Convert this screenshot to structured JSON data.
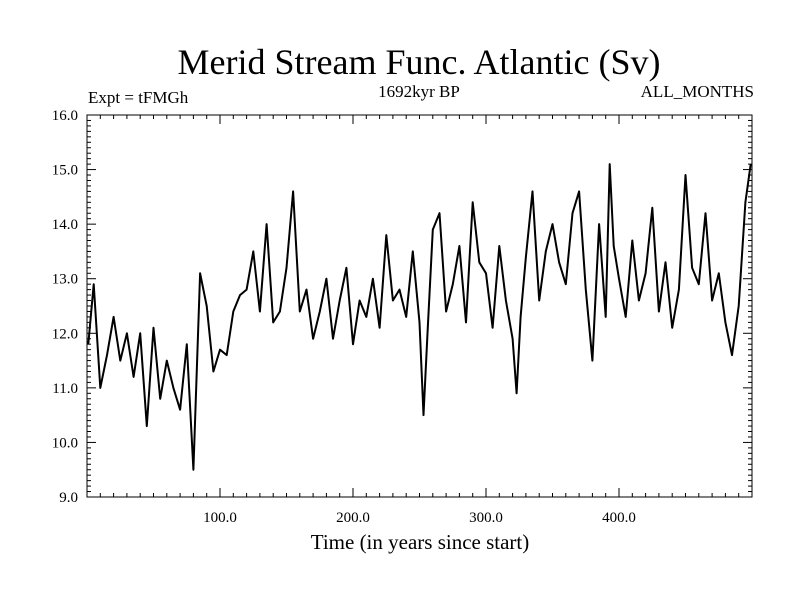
{
  "chart_data": {
    "type": "line",
    "title": "Merid Stream Func. Atlantic (Sv)",
    "subtitle_left": "Expt = tFMGh",
    "subtitle_center": "1692kyr BP",
    "subtitle_right": "ALL_MONTHS",
    "xlabel": "Time (in years since start)",
    "ylabel": "",
    "xlim": [
      0,
      500
    ],
    "ylim": [
      9.0,
      16.0
    ],
    "x_ticks": [
      100,
      200,
      300,
      400
    ],
    "x_tick_labels": [
      "100.0",
      "200.0",
      "300.0",
      "400.0"
    ],
    "y_ticks": [
      9,
      10,
      11,
      12,
      13,
      14,
      15,
      16
    ],
    "y_tick_labels": [
      "9.0",
      "10.0",
      "11.0",
      "12.0",
      "13.0",
      "14.0",
      "15.0",
      "16.0"
    ],
    "grid": false,
    "series": [
      {
        "name": "tFMGh",
        "x": [
          1,
          5,
          10,
          15,
          20,
          25,
          30,
          35,
          40,
          45,
          50,
          55,
          60,
          65,
          70,
          75,
          80,
          85,
          90,
          95,
          100,
          105,
          110,
          115,
          120,
          125,
          130,
          135,
          140,
          145,
          150,
          155,
          160,
          165,
          170,
          175,
          180,
          185,
          190,
          195,
          200,
          205,
          210,
          215,
          220,
          225,
          230,
          235,
          240,
          245,
          250,
          253,
          256,
          260,
          265,
          270,
          275,
          280,
          285,
          290,
          295,
          300,
          305,
          310,
          315,
          320,
          323,
          326,
          330,
          335,
          340,
          345,
          350,
          355,
          360,
          365,
          370,
          375,
          380,
          385,
          390,
          393,
          396,
          400,
          405,
          410,
          415,
          420,
          425,
          430,
          435,
          440,
          445,
          450,
          455,
          460,
          465,
          470,
          475,
          480,
          485,
          490,
          495,
          499
        ],
        "values": [
          11.8,
          12.9,
          11.0,
          11.6,
          12.3,
          11.5,
          12.0,
          11.2,
          12.0,
          10.3,
          12.1,
          10.8,
          11.5,
          11.0,
          10.6,
          11.8,
          9.5,
          13.1,
          12.5,
          11.3,
          11.7,
          11.6,
          12.4,
          12.7,
          12.8,
          13.5,
          12.4,
          14.0,
          12.2,
          12.4,
          13.2,
          14.6,
          12.4,
          12.8,
          11.9,
          12.4,
          13.0,
          11.9,
          12.6,
          13.2,
          11.8,
          12.6,
          12.3,
          13.0,
          12.1,
          13.8,
          12.6,
          12.8,
          12.3,
          13.5,
          12.2,
          10.5,
          12.0,
          13.9,
          14.2,
          12.4,
          12.9,
          13.6,
          12.2,
          14.4,
          13.3,
          13.1,
          12.1,
          13.6,
          12.6,
          11.9,
          10.9,
          12.3,
          13.4,
          14.6,
          12.6,
          13.5,
          14.0,
          13.3,
          12.9,
          14.2,
          14.6,
          12.8,
          11.5,
          14.0,
          12.3,
          15.1,
          13.6,
          13.0,
          12.3,
          13.7,
          12.6,
          13.1,
          14.3,
          12.4,
          13.3,
          12.1,
          12.8,
          14.9,
          13.2,
          12.9,
          14.2,
          12.6,
          13.1,
          12.2,
          11.6,
          12.5,
          14.4,
          15.1
        ]
      }
    ]
  }
}
